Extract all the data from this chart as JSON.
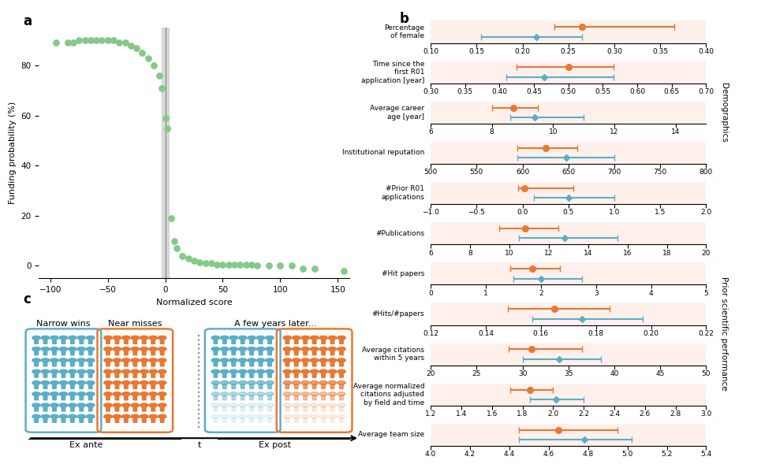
{
  "panel_a": {
    "x": [
      -95,
      -85,
      -80,
      -75,
      -70,
      -65,
      -60,
      -55,
      -50,
      -45,
      -40,
      -35,
      -30,
      -25,
      -20,
      -15,
      -10,
      -5,
      -3,
      0,
      2,
      5,
      8,
      10,
      15,
      20,
      25,
      30,
      35,
      40,
      45,
      50,
      55,
      60,
      65,
      70,
      75,
      80,
      90,
      100,
      110,
      120,
      130,
      155
    ],
    "y": [
      89,
      89,
      89,
      90,
      90,
      90,
      90,
      90,
      90,
      90,
      89,
      89,
      88,
      87,
      85,
      83,
      80,
      76,
      71,
      59,
      55,
      19,
      10,
      7,
      4,
      3,
      2,
      1.5,
      1,
      1,
      0.5,
      0.5,
      0.5,
      0.5,
      0.5,
      0.5,
      0.5,
      0,
      0,
      0,
      0,
      -1,
      -1,
      -2
    ],
    "dot_color": "#85C989",
    "vline_x": [
      -3,
      3
    ],
    "xlabel": "Normalized score",
    "ylabel": "Funding probability (%)",
    "xlim": [
      -110,
      160
    ],
    "ylim": [
      -5,
      95
    ],
    "yticks": [
      0,
      20,
      40,
      60,
      80
    ],
    "xticks": [
      -100,
      -50,
      0,
      50,
      100,
      150
    ]
  },
  "panel_b": {
    "background_color": "#FFF0EC",
    "rows": [
      {
        "label": "Percentage\nof female",
        "orange_val": 0.265,
        "orange_lo": 0.235,
        "orange_hi": 0.365,
        "blue_val": 0.215,
        "blue_lo": 0.155,
        "blue_hi": 0.265,
        "xmin": 0.1,
        "xmax": 0.4,
        "xticks": [
          0.1,
          0.15,
          0.2,
          0.25,
          0.3,
          0.35,
          0.4
        ],
        "group": "Demographics"
      },
      {
        "label": "Time since the\nfirst R01\napplication [year]",
        "orange_val": 0.5,
        "orange_lo": 0.425,
        "orange_hi": 0.565,
        "blue_val": 0.465,
        "blue_lo": 0.41,
        "blue_hi": 0.565,
        "xmin": 0.3,
        "xmax": 0.7,
        "xticks": [
          0.3,
          0.35,
          0.4,
          0.45,
          0.5,
          0.55,
          0.6,
          0.65,
          0.7
        ],
        "group": "Demographics"
      },
      {
        "label": "Average career\nage [year]",
        "orange_val": 8.7,
        "orange_lo": 8.0,
        "orange_hi": 9.5,
        "blue_val": 9.4,
        "blue_lo": 8.6,
        "blue_hi": 11.0,
        "xmin": 6,
        "xmax": 15,
        "xticks": [
          6,
          8,
          10,
          12,
          14
        ],
        "group": "Demographics"
      },
      {
        "label": "Institutional reputation",
        "orange_val": 625,
        "orange_lo": 594,
        "orange_hi": 660,
        "blue_val": 648,
        "blue_lo": 594,
        "blue_hi": 700,
        "xmin": 500,
        "xmax": 800,
        "xticks": [
          500,
          550,
          600,
          650,
          700,
          750,
          800
        ],
        "group": "Demographics"
      },
      {
        "label": "#Prior R01\napplications",
        "orange_val": 0.02,
        "orange_lo": -0.05,
        "orange_hi": 0.55,
        "blue_val": 0.5,
        "blue_lo": 0.12,
        "blue_hi": 1.0,
        "xmin": -1.0,
        "xmax": 2.0,
        "xticks": [
          -1.0,
          -0.5,
          0.0,
          0.5,
          1.0,
          1.5,
          2.0
        ],
        "group": "Demographics"
      },
      {
        "label": "#Publications",
        "orange_val": 10.8,
        "orange_lo": 9.5,
        "orange_hi": 12.5,
        "blue_val": 12.8,
        "blue_lo": 10.5,
        "blue_hi": 15.5,
        "xmin": 6,
        "xmax": 20,
        "xticks": [
          6,
          8,
          10,
          12,
          14,
          16,
          18,
          20
        ],
        "group": "Prior scientific performance"
      },
      {
        "label": "#Hit papers",
        "orange_val": 1.85,
        "orange_lo": 1.45,
        "orange_hi": 2.35,
        "blue_val": 2.0,
        "blue_lo": 1.5,
        "blue_hi": 2.75,
        "xmin": 0,
        "xmax": 5,
        "xticks": [
          0,
          1,
          2,
          3,
          4,
          5
        ],
        "group": "Prior scientific performance"
      },
      {
        "label": "#Hits/#papers",
        "orange_val": 0.165,
        "orange_lo": 0.148,
        "orange_hi": 0.185,
        "blue_val": 0.175,
        "blue_lo": 0.157,
        "blue_hi": 0.197,
        "xmin": 0.12,
        "xmax": 0.22,
        "xticks": [
          0.12,
          0.14,
          0.16,
          0.18,
          0.2,
          0.22
        ],
        "group": "Prior scientific performance"
      },
      {
        "label": "Average citations\nwithin 5 years",
        "orange_val": 31.0,
        "orange_lo": 28.5,
        "orange_hi": 36.5,
        "blue_val": 34.0,
        "blue_lo": 30.0,
        "blue_hi": 38.5,
        "xmin": 20,
        "xmax": 50,
        "xticks": [
          20,
          25,
          30,
          35,
          40,
          45,
          50
        ],
        "group": "Prior scientific performance"
      },
      {
        "label": "Average normalized\ncitations adjusted\nby field and time",
        "orange_val": 1.85,
        "orange_lo": 1.72,
        "orange_hi": 2.0,
        "blue_val": 2.02,
        "blue_lo": 1.85,
        "blue_hi": 2.2,
        "xmin": 1.2,
        "xmax": 3.0,
        "xticks": [
          1.2,
          1.4,
          1.6,
          1.8,
          2.0,
          2.2,
          2.4,
          2.6,
          2.8,
          3.0
        ],
        "group": "Prior scientific performance"
      },
      {
        "label": "Average team size",
        "orange_val": 4.65,
        "orange_lo": 4.45,
        "orange_hi": 4.95,
        "blue_val": 4.78,
        "blue_lo": 4.45,
        "blue_hi": 5.02,
        "xmin": 4.0,
        "xmax": 5.4,
        "xticks": [
          4.0,
          4.2,
          4.4,
          4.6,
          4.8,
          5.0,
          5.2,
          5.4
        ],
        "group": "Prior scientific performance"
      }
    ],
    "orange_color": "#E87832",
    "blue_color": "#5BAFC5",
    "demographics_label": "Demographics",
    "performance_label": "Prior scientific performance"
  },
  "panel_c": {
    "blue_color": "#5BAFC5",
    "orange_color": "#E87832",
    "narrow_wins_label": "Narrow wins",
    "near_misses_label": "Near misses",
    "later_label": "A few years later...",
    "ex_ante_label": "Ex ante",
    "ex_post_label": "Ex post",
    "t_label": "t",
    "n_rows": 8,
    "n_cols": 7
  }
}
